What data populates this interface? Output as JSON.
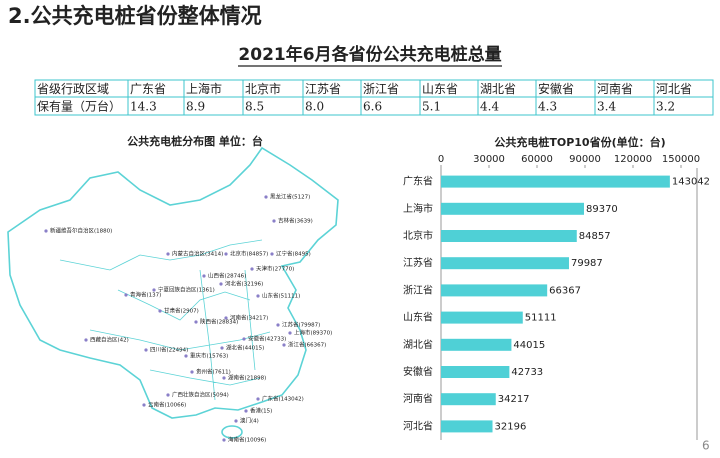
{
  "heading": "2.公共充电桩省份整体情况",
  "subtitle": "2021年6月各省份公共充电桩总量",
  "table": {
    "rows": [
      [
        "省级行政区域",
        "广东省",
        "上海市",
        "北京市",
        "江苏省",
        "浙江省",
        "山东省",
        "湖北省",
        "安徽省",
        "河南省",
        "河北省"
      ],
      [
        "保有量（万台）",
        "14.3",
        "8.9",
        "8.5",
        "8.0",
        "6.6",
        "5.1",
        "4.4",
        "4.3",
        "3.4",
        "3.2"
      ]
    ]
  },
  "map": {
    "title": "公共充电桩分布图  单位：台",
    "labels": [
      "黑龙江省(5127)",
      "吉林省(3639)",
      "新疆维吾尔自治区(1880)",
      "内蒙古自治区(3414)",
      "北京市(84857)",
      "辽宁省(8495)",
      "天津市(27770)",
      "山西省(28746)",
      "河北省(32196)",
      "山东省(51111)",
      "青海省(137)",
      "宁夏回族自治区(1361)",
      "甘肃省(2907)",
      "陕西省(28834)",
      "河南省(34217)",
      "江苏省(79987)",
      "上海市(89370)",
      "安徽省(42733)",
      "浙江省(66367)",
      "湖北省(44015)",
      "西藏自治区(42)",
      "四川省(22494)",
      "重庆市(15763)",
      "贵州省(7611)",
      "湖南省(21898)",
      "云南省(10066)",
      "广西壮族自治区(5094)",
      "广东省(143042)",
      "香港(15)",
      "澳门(4)",
      "海南省(10096)"
    ]
  },
  "chart_data": {
    "type": "bar",
    "orientation": "horizontal",
    "title": "公共充电桩TOP10省份(单位：台)",
    "categories": [
      "广东省",
      "上海市",
      "北京市",
      "江苏省",
      "浙江省",
      "山东省",
      "湖北省",
      "安徽省",
      "河南省",
      "河北省"
    ],
    "values": [
      143042,
      89370,
      84857,
      79987,
      66367,
      51111,
      44015,
      42733,
      34217,
      32196
    ],
    "color": "#4fd0d6",
    "xlim": [
      0,
      160000
    ],
    "xticks": [
      0,
      30000,
      60000,
      90000,
      120000,
      150000
    ]
  },
  "page_number": "6"
}
